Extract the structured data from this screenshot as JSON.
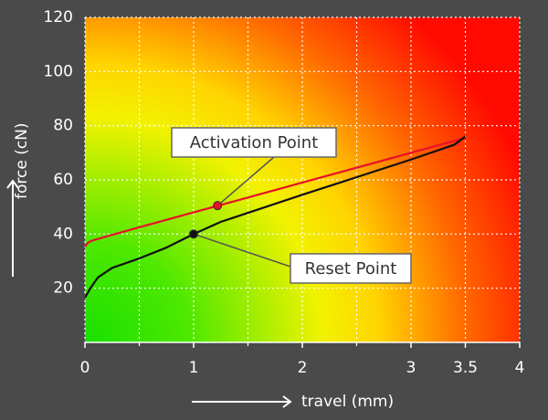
{
  "chart_data": {
    "type": "line",
    "xlabel": "travel (mm)",
    "ylabel": "force (cN)",
    "xlim": [
      0,
      4
    ],
    "xticks": [
      0,
      1,
      2,
      3,
      3.5,
      4
    ],
    "xminorticks": [
      0.5,
      1.5,
      2.5
    ],
    "ylim": [
      0,
      120
    ],
    "yticks": [
      20,
      40,
      60,
      80,
      100,
      120
    ],
    "grid": true,
    "series": [
      {
        "color": "#e8102a",
        "x": [
          0,
          0.02,
          0.05,
          0.1,
          0.5,
          1,
          1.5,
          2,
          2.5,
          3,
          3.5
        ],
        "values": [
          35.3,
          36.5,
          37.3,
          38,
          42.5,
          48,
          53.5,
          59,
          64.5,
          70,
          75.5
        ]
      },
      {
        "color": "#111111",
        "x": [
          0,
          0.05,
          0.12,
          0.25,
          0.5,
          0.75,
          1,
          1.25,
          2,
          3,
          3.4,
          3.5
        ],
        "values": [
          16.5,
          20,
          24,
          27.5,
          31,
          35,
          40,
          44.5,
          54.5,
          67.5,
          73,
          76
        ]
      }
    ],
    "annotations": [
      {
        "text": "Activation Point",
        "x": 1.22,
        "y": 50.5,
        "color": "#e8102a"
      },
      {
        "text": "Reset Point",
        "x": 1,
        "y": 40,
        "color": "#111111"
      }
    ]
  }
}
